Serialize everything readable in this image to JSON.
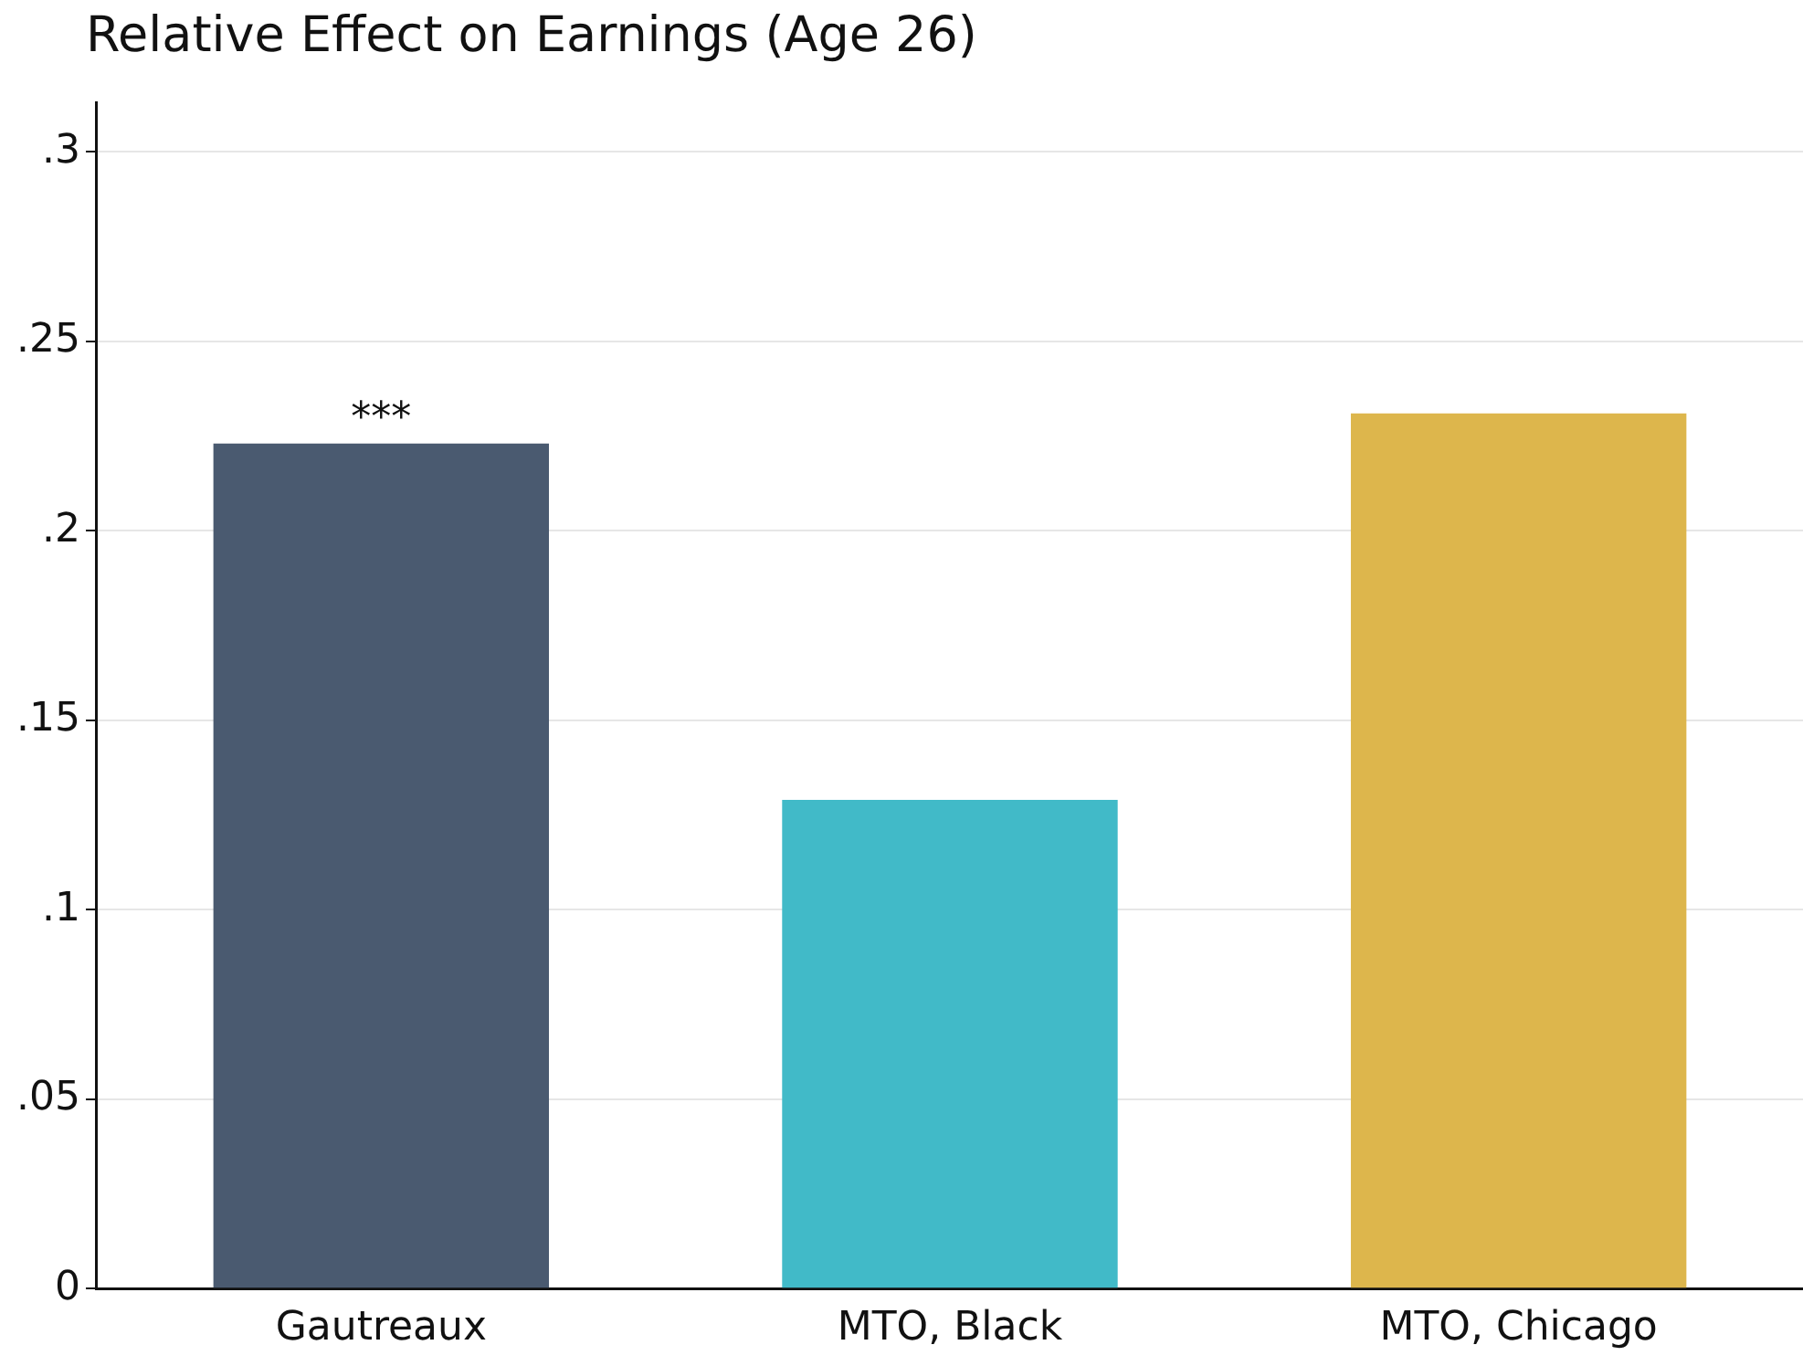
{
  "chart_data": {
    "type": "bar",
    "title": "Relative Effect on Earnings (Age 26)",
    "categories": [
      "Gautreaux",
      "MTO, Black",
      "MTO, Chicago"
    ],
    "values": [
      0.223,
      0.129,
      0.231
    ],
    "colors": [
      "#4a5a70",
      "#41bac8",
      "#ddb64c"
    ],
    "ylim": [
      0,
      0.313
    ],
    "yticks": [
      0,
      {
        "value": 0.05,
        "label": ".05"
      },
      {
        "value": 0.1,
        "label": ".1"
      },
      {
        "value": 0.15,
        "label": ".15"
      },
      {
        "value": 0.2,
        "label": ".2"
      },
      {
        "value": 0.25,
        "label": ".25"
      },
      {
        "value": 0.3,
        "label": ".3"
      }
    ],
    "grid": "y",
    "legend": false,
    "annotations": [
      {
        "text": "***",
        "x": "Gautreaux",
        "y": 0.223
      }
    ]
  }
}
